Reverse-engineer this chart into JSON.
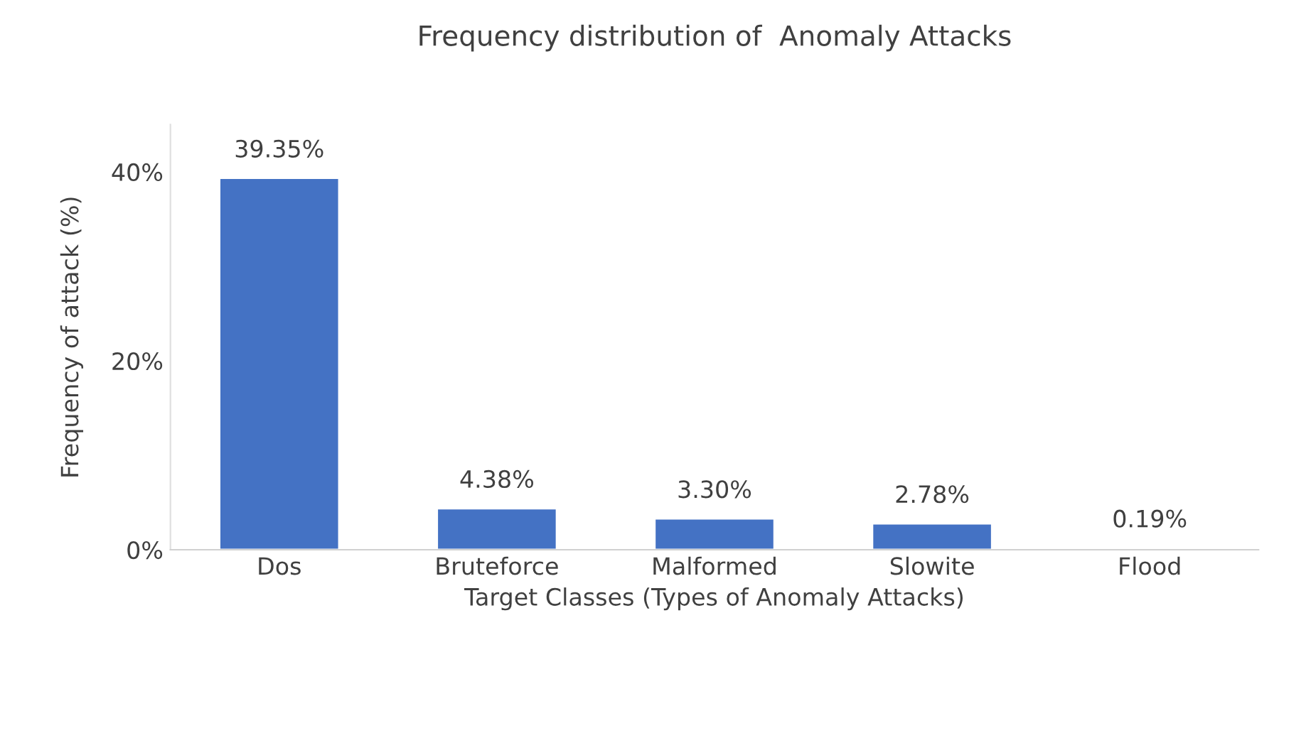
{
  "chart_data": {
    "type": "bar",
    "title": "Frequency distribution of  Anomaly Attacks",
    "xlabel": "Target Classes (Types of Anomaly Attacks)",
    "ylabel": "Frequency of attack (%)",
    "categories": [
      "Dos",
      "Bruteforce",
      "Malformed",
      "Slowite",
      "Flood"
    ],
    "values": [
      39.35,
      4.38,
      3.3,
      2.78,
      0.19
    ],
    "value_labels": [
      "39.35%",
      "4.38%",
      "3.30%",
      "2.78%",
      "0.19%"
    ],
    "color": "#4472c4",
    "ylim": [
      0,
      45
    ],
    "yticks": [
      {
        "value": 0,
        "label": "0%"
      },
      {
        "value": 20,
        "label": "20%"
      },
      {
        "value": 40,
        "label": "40%"
      }
    ],
    "grid": false,
    "legend": false
  }
}
